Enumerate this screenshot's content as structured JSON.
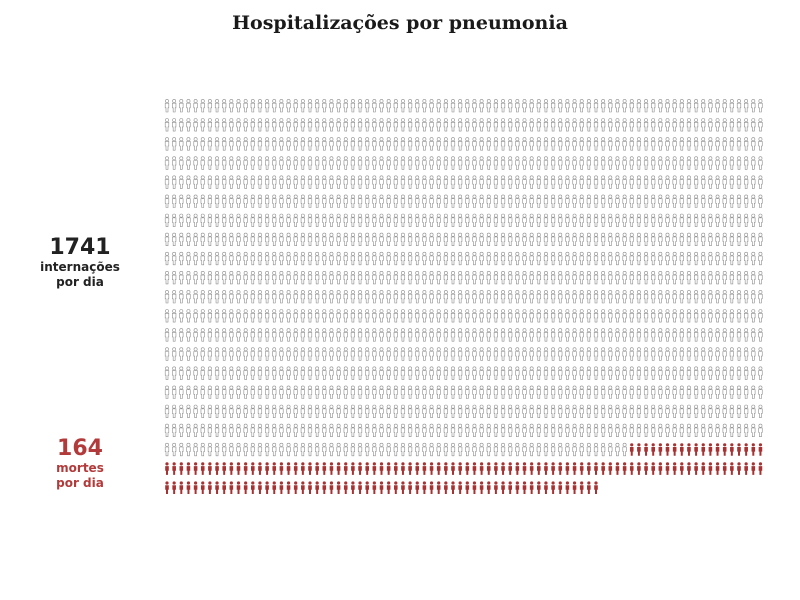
{
  "title": "Hospitalizações por pneumonia",
  "hospitalizations": {
    "value": "1741",
    "label_line1": "internações",
    "label_line2": "por dia"
  },
  "deaths": {
    "value": "164",
    "label_line1": "mortes",
    "label_line2": "por dia"
  },
  "chart_data": {
    "type": "pictogram",
    "title": "Hospitalizações por pneumonia",
    "series": [
      {
        "name": "internações por dia",
        "value": 1741,
        "color": "#8c8c8c",
        "style": "outline"
      },
      {
        "name": "mortes por dia",
        "value": 164,
        "color": "#a83232",
        "style": "filled"
      }
    ],
    "icon": "person-icon"
  }
}
